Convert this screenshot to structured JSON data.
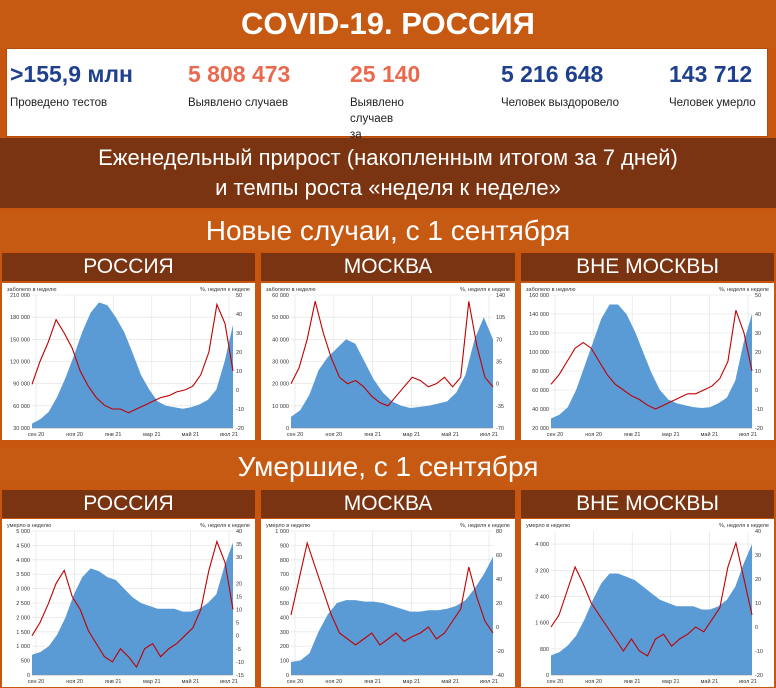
{
  "title": "COVID-19. РОССИЯ",
  "stats": [
    {
      "value": ">155,9 млн",
      "label": "Проведено тестов",
      "color": "#1f3f8f"
    },
    {
      "value": "5 808 473",
      "label": "Выявлено случаев",
      "color": "#e96a4f"
    },
    {
      "value": "25 140",
      "label": "Выявлено случаев\nза последние сутки",
      "color": "#e96a4f"
    },
    {
      "value": "5 216 648",
      "label": "Человек выздоровело",
      "color": "#1f3f8f"
    },
    {
      "value": "143 712",
      "label": "Человек умерло",
      "color": "#1f3f8f"
    }
  ],
  "subtitle_line1": "Еженедельный прирост (накопленным итогом за 7 дней)",
  "subtitle_line2": "и темпы роста «неделя к неделе»",
  "section_cases": "Новые случаи, с 1 сентября",
  "section_deaths": "Умершие, с 1 сентября",
  "regions": [
    "РОССИЯ",
    "МОСКВА",
    "ВНЕ МОСКВЫ"
  ],
  "colors": {
    "area": "#5b9bd5",
    "line": "#c00000",
    "accent": "#c65a12",
    "dark": "#7b3411"
  },
  "chart_data": [
    {
      "type": "area",
      "region": "РОССИЯ",
      "metric": "cases",
      "left_title": "заболело в неделю",
      "right_title": "%, неделя к неделе",
      "x_ticks": [
        "сен 20",
        "ноя 20",
        "янв 21",
        "мар 21",
        "май 21",
        "июл 21"
      ],
      "ylim": [
        30000,
        210000
      ],
      "y_ticks": [
        "210 000",
        "180 000",
        "150 000",
        "120 000",
        "90 000",
        "60 000",
        "30 000"
      ],
      "y2lim": [
        -20,
        50
      ],
      "y2_ticks": [
        "50",
        "40",
        "30",
        "20",
        "10",
        "0",
        "-10",
        "-20"
      ],
      "series": [
        {
          "name": "заболело в неделю",
          "axis": "left",
          "values": [
            36000,
            42000,
            52000,
            72000,
            98000,
            128000,
            160000,
            186000,
            200000,
            196000,
            180000,
            160000,
            132000,
            102000,
            82000,
            66000,
            60000,
            58000,
            56000,
            58000,
            62000,
            68000,
            82000,
            120000,
            170000
          ]
        },
        {
          "name": "%, неделя к неделе",
          "axis": "right",
          "values": [
            3,
            15,
            25,
            37,
            30,
            22,
            10,
            2,
            -4,
            -8,
            -10,
            -10,
            -12,
            -10,
            -8,
            -6,
            -4,
            -3,
            -1,
            0,
            2,
            8,
            20,
            45,
            35,
            10
          ]
        }
      ]
    },
    {
      "type": "area",
      "region": "МОСКВА",
      "metric": "cases",
      "left_title": "заболело в неделю",
      "right_title": "%, неделя к неделе",
      "x_ticks": [
        "сен 20",
        "ноя 20",
        "янв 21",
        "мар 21",
        "май 21",
        "июл 21"
      ],
      "ylim": [
        0,
        60000
      ],
      "y_ticks": [
        "60 000",
        "50 000",
        "40 000",
        "30 000",
        "20 000",
        "10 000",
        "0"
      ],
      "y2lim": [
        -70,
        140
      ],
      "y2_ticks": [
        "140",
        "105",
        "70",
        "35",
        "0",
        "-35",
        "-70"
      ],
      "series": [
        {
          "name": "заболело в неделю",
          "axis": "left",
          "values": [
            5000,
            8000,
            15000,
            26000,
            32000,
            36000,
            40000,
            38000,
            30000,
            22000,
            16000,
            12000,
            10000,
            9000,
            9500,
            10000,
            11000,
            12000,
            16000,
            24000,
            40000,
            50000,
            40000
          ]
        },
        {
          "name": "%, неделя к неделе",
          "axis": "right",
          "values": [
            0,
            25,
            70,
            130,
            80,
            40,
            10,
            0,
            5,
            -5,
            -20,
            -30,
            -35,
            -20,
            -5,
            10,
            5,
            -5,
            0,
            10,
            -5,
            10,
            130,
            60,
            10,
            -5
          ]
        }
      ]
    },
    {
      "type": "area",
      "region": "ВНЕ МОСКВЫ",
      "metric": "cases",
      "left_title": "заболело в неделю",
      "right_title": "%, неделя к неделе",
      "x_ticks": [
        "сен 20",
        "ноя 20",
        "янв 21",
        "мар 21",
        "май 21",
        "июл 21"
      ],
      "ylim": [
        20000,
        160000
      ],
      "y_ticks": [
        "160 000",
        "140 000",
        "120 000",
        "100 000",
        "80 000",
        "60 000",
        "40 000",
        "20 000"
      ],
      "y2lim": [
        -20,
        50
      ],
      "y2_ticks": [
        "50",
        "40",
        "30",
        "20",
        "10",
        "0",
        "-10",
        "-20"
      ],
      "series": [
        {
          "name": "заболело в неделю",
          "axis": "left",
          "values": [
            30000,
            34000,
            42000,
            60000,
            85000,
            110000,
            135000,
            150000,
            150000,
            140000,
            122000,
            100000,
            78000,
            60000,
            50000,
            46000,
            44000,
            42000,
            41000,
            42000,
            46000,
            52000,
            70000,
            110000,
            140000
          ]
        },
        {
          "name": "%, неделя к неделе",
          "axis": "right",
          "values": [
            3,
            8,
            15,
            22,
            25,
            22,
            15,
            8,
            3,
            0,
            -3,
            -5,
            -8,
            -10,
            -8,
            -6,
            -4,
            -2,
            -2,
            0,
            2,
            6,
            15,
            42,
            30,
            10
          ]
        }
      ]
    },
    {
      "type": "area",
      "region": "РОССИЯ",
      "metric": "deaths",
      "left_title": "умерло в неделю",
      "right_title": "%, неделя к неделе",
      "x_ticks": [
        "сен 20",
        "ноя 20",
        "янв 21",
        "мар 21",
        "май 21",
        "июл 21"
      ],
      "ylim": [
        0,
        5000
      ],
      "y_ticks": [
        "5 000",
        "4 500",
        "4 000",
        "3 500",
        "3 000",
        "2 500",
        "2 000",
        "1 500",
        "1 000",
        "500",
        "0"
      ],
      "y2lim": [
        -15,
        40
      ],
      "y2_ticks": [
        "40",
        "35",
        "30",
        "20",
        "15",
        "10",
        "5",
        "0",
        "-5",
        "-10",
        "-15"
      ],
      "series": [
        {
          "name": "умерло в неделю",
          "axis": "left",
          "values": [
            700,
            800,
            1000,
            1400,
            2000,
            2800,
            3400,
            3700,
            3600,
            3400,
            3300,
            3000,
            2700,
            2500,
            2400,
            2300,
            2300,
            2300,
            2200,
            2200,
            2300,
            2500,
            2800,
            3800,
            4600
          ]
        },
        {
          "name": "%, неделя к неделе",
          "axis": "right",
          "values": [
            0,
            5,
            12,
            20,
            25,
            15,
            10,
            2,
            -3,
            -8,
            -10,
            -5,
            -8,
            -12,
            -5,
            -3,
            -8,
            -5,
            -3,
            0,
            3,
            10,
            25,
            36,
            28,
            10
          ]
        }
      ]
    },
    {
      "type": "area",
      "region": "МОСКВА",
      "metric": "deaths",
      "left_title": "умерло в неделю",
      "right_title": "%, неделя к неделе",
      "x_ticks": [
        "сен 20",
        "ноя 20",
        "янв 21",
        "мар 21",
        "май 21",
        "июл 21"
      ],
      "ylim": [
        0,
        1000
      ],
      "y_ticks": [
        "1 000",
        "900",
        "800",
        "700",
        "600",
        "500",
        "400",
        "300",
        "200",
        "100",
        "0"
      ],
      "y2lim": [
        -40,
        80
      ],
      "y2_ticks": [
        "80",
        "60",
        "40",
        "20",
        "0",
        "-20",
        "-40"
      ],
      "series": [
        {
          "name": "умерло в неделю",
          "axis": "left",
          "values": [
            90,
            100,
            150,
            300,
            420,
            500,
            520,
            520,
            510,
            510,
            500,
            480,
            460,
            440,
            440,
            450,
            450,
            460,
            480,
            520,
            600,
            700,
            820
          ]
        },
        {
          "name": "%, неделя к неделе",
          "axis": "right",
          "values": [
            10,
            40,
            70,
            50,
            30,
            10,
            -5,
            -10,
            -15,
            -10,
            -5,
            -15,
            -10,
            -5,
            -12,
            -8,
            -5,
            0,
            -10,
            -5,
            5,
            15,
            50,
            25,
            5,
            -5
          ]
        }
      ]
    },
    {
      "type": "area",
      "region": "ВНЕ МОСКВЫ",
      "metric": "deaths",
      "left_title": "умерло в неделю",
      "right_title": "%, неделя к неделе",
      "x_ticks": [
        "сен 20",
        "ноя 20",
        "янв 21",
        "мар 21",
        "май 21",
        "июл 21"
      ],
      "ylim": [
        0,
        4400
      ],
      "y_ticks": [
        "4 000",
        "3 200",
        "2 400",
        "1 600",
        "800",
        "0"
      ],
      "y2lim": [
        -20,
        40
      ],
      "y2_ticks": [
        "40",
        "30",
        "20",
        "10",
        "0",
        "-10",
        "-20"
      ],
      "series": [
        {
          "name": "умерло в неделю",
          "axis": "left",
          "values": [
            600,
            700,
            900,
            1200,
            1700,
            2300,
            2800,
            3100,
            3100,
            3000,
            2900,
            2700,
            2500,
            2300,
            2200,
            2100,
            2100,
            2100,
            2000,
            2000,
            2100,
            2300,
            2700,
            3400,
            4000
          ]
        },
        {
          "name": "%, неделя к неделе",
          "axis": "right",
          "values": [
            0,
            5,
            15,
            25,
            18,
            10,
            5,
            0,
            -5,
            -10,
            -5,
            -10,
            -12,
            -5,
            -3,
            -8,
            -5,
            -3,
            0,
            -2,
            3,
            8,
            25,
            35,
            20,
            5
          ]
        }
      ]
    }
  ]
}
